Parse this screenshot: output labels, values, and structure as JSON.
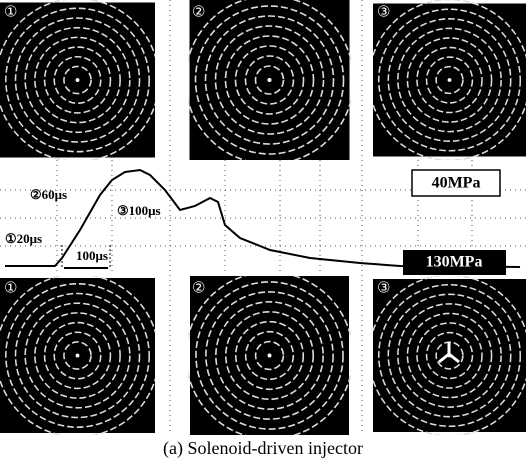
{
  "panels_top": [
    {
      "label": "①"
    },
    {
      "label": "②"
    },
    {
      "label": "③"
    }
  ],
  "trace": {
    "time_marks": [
      "①20μs",
      "②60μs",
      "③100μs"
    ],
    "interval": "100μs",
    "pressure_low": "40MPa",
    "pressure_high": "130MPa"
  },
  "panels_bottom": [
    {
      "label": "①"
    },
    {
      "label": "②"
    },
    {
      "label": "③"
    }
  ],
  "caption": "(a) Solenoid-driven injector"
}
